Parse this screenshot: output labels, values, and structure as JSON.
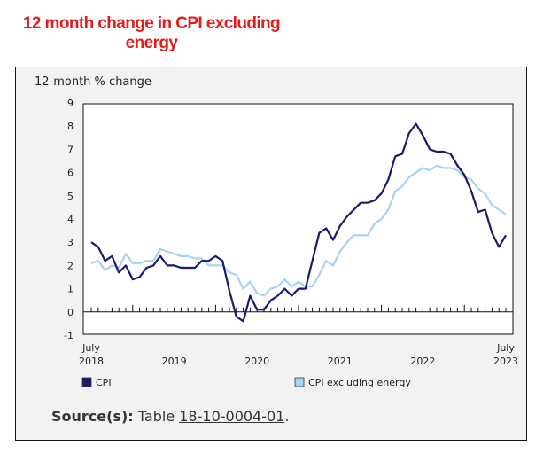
{
  "title_line1": "12 month change in CPI excluding",
  "title_line2": "energy",
  "source": {
    "label": "Source(s):",
    "prefix": "Table ",
    "link": "18-10-0004-01",
    "suffix": "."
  },
  "chart_data": {
    "type": "line",
    "ylabel": "12-month % change",
    "ylim": [
      -1,
      9
    ],
    "yticks": [
      "-1",
      "0",
      "1",
      "2",
      "3",
      "4",
      "5",
      "6",
      "7",
      "8",
      "9"
    ],
    "xlabels": [
      {
        "index": 0,
        "line1": "July",
        "line2": "2018"
      },
      {
        "index": 12,
        "line1": "",
        "line2": "2019"
      },
      {
        "index": 24,
        "line1": "",
        "line2": "2020"
      },
      {
        "index": 36,
        "line1": "",
        "line2": "2021"
      },
      {
        "index": 48,
        "line1": "",
        "line2": "2022"
      },
      {
        "index": 60,
        "line1": "July",
        "line2": "2023"
      }
    ],
    "series": [
      {
        "name": "CPI",
        "color": "#1a1a6e",
        "values": [
          3.0,
          2.8,
          2.2,
          2.4,
          1.7,
          2.0,
          1.4,
          1.5,
          1.9,
          2.0,
          2.4,
          2.0,
          2.0,
          1.9,
          1.9,
          1.9,
          2.2,
          2.2,
          2.4,
          2.2,
          0.9,
          -0.2,
          -0.4,
          0.7,
          0.1,
          0.1,
          0.5,
          0.7,
          1.0,
          0.7,
          1.0,
          1.0,
          2.2,
          3.4,
          3.6,
          3.1,
          3.7,
          4.1,
          4.4,
          4.7,
          4.7,
          4.8,
          5.1,
          5.7,
          6.7,
          6.8,
          7.7,
          8.1,
          7.6,
          7.0,
          6.9,
          6.9,
          6.8,
          6.3,
          5.9,
          5.2,
          4.3,
          4.4,
          3.4,
          2.8,
          3.3
        ]
      },
      {
        "name": "CPI excluding energy",
        "color": "#a8d3f0",
        "values": [
          2.1,
          2.2,
          1.8,
          2.0,
          1.9,
          2.5,
          2.1,
          2.1,
          2.2,
          2.2,
          2.7,
          2.6,
          2.5,
          2.4,
          2.4,
          2.3,
          2.3,
          2.0,
          2.0,
          2.0,
          1.7,
          1.6,
          1.0,
          1.3,
          0.8,
          0.7,
          1.0,
          1.1,
          1.4,
          1.1,
          1.3,
          1.1,
          1.1,
          1.6,
          2.2,
          2.0,
          2.6,
          3.0,
          3.3,
          3.3,
          3.3,
          3.8,
          4.0,
          4.4,
          5.2,
          5.4,
          5.8,
          6.0,
          6.2,
          6.1,
          6.3,
          6.2,
          6.2,
          6.1,
          5.8,
          5.7,
          5.3,
          5.1,
          4.6,
          4.4,
          4.2
        ]
      }
    ]
  }
}
